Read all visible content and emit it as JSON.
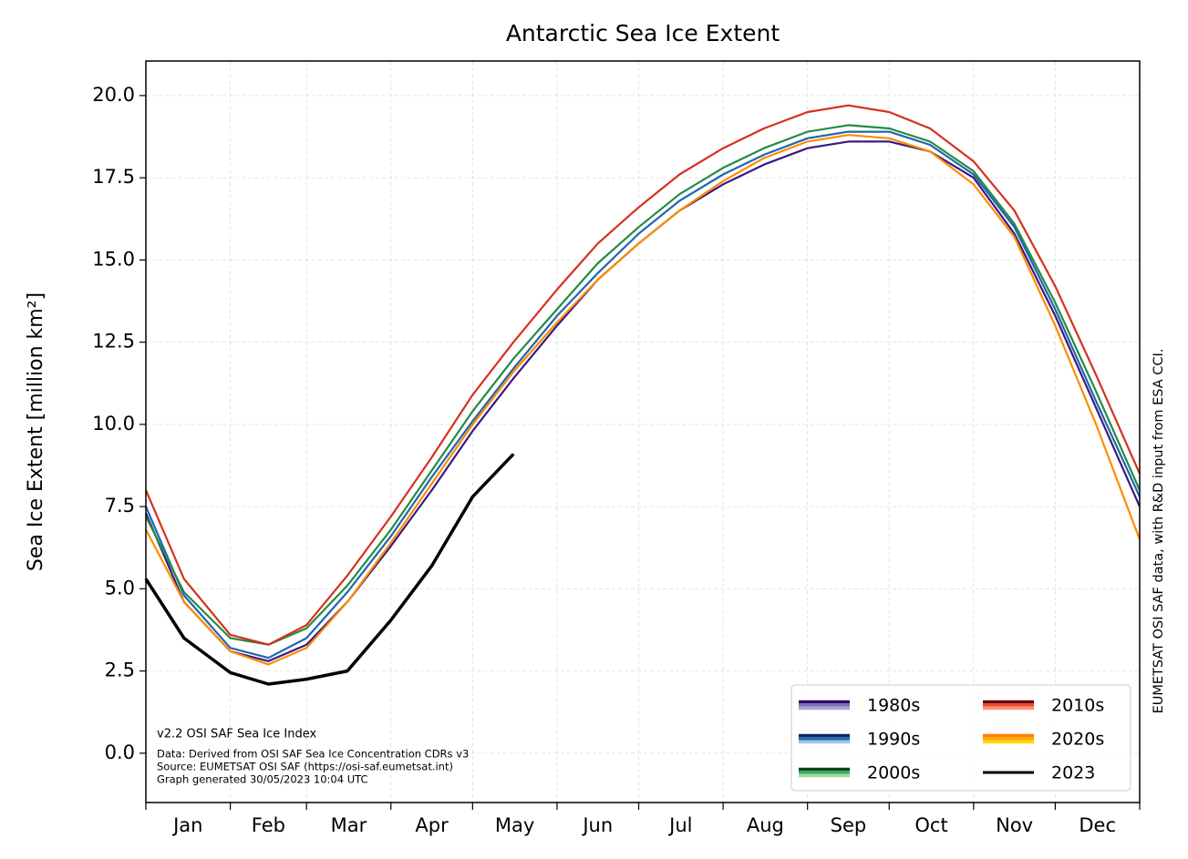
{
  "chart_data": {
    "type": "line",
    "title": "Antarctic Sea Ice Extent",
    "y_label": "Sea Ice Extent [million km²]",
    "side_note": "EUMETSAT OSI SAF data, with R&D input from ESA CCI.",
    "notes": [
      "v2.2 OSI SAF Sea Ice Index",
      "Data: Derived from OSI SAF Sea Ice Concentration CDRs v3",
      "Source: EUMETSAT OSI SAF (https://osi-saf.eumetsat.int)",
      "Graph generated 30/05/2023 10:04 UTC"
    ],
    "categories": [
      "Jan",
      "Feb",
      "Mar",
      "Apr",
      "May",
      "Jun",
      "Jul",
      "Aug",
      "Sep",
      "Oct",
      "Nov",
      "Dec"
    ],
    "xticks": [
      1,
      32,
      60,
      91,
      121,
      152,
      182,
      213,
      244,
      274,
      305,
      335,
      366
    ],
    "xlim": [
      1,
      366
    ],
    "ylim": [
      -1.5,
      21.05
    ],
    "yticks": [
      {
        "value": 0,
        "label": "0.0"
      },
      2.5,
      {
        "value": 5,
        "label": "5.0"
      },
      7.5,
      {
        "value": 10,
        "label": "10.0"
      },
      12.5,
      {
        "value": 15,
        "label": "15.0"
      },
      17.5,
      {
        "value": 20,
        "label": "20.0"
      }
    ],
    "grid": true,
    "legend_position": "lower right",
    "x": [
      1,
      15,
      32,
      46,
      60,
      75,
      91,
      106,
      121,
      136,
      152,
      167,
      182,
      197,
      213,
      228,
      244,
      259,
      274,
      289,
      305,
      320,
      335,
      350,
      366
    ],
    "series": [
      {
        "name": "1980s",
        "color": "#3b1a80",
        "shades": [
          "#2a0a6b",
          "#7b6cb3",
          "#a9a3d6"
        ],
        "values": [
          7.3,
          4.6,
          3.1,
          2.8,
          3.3,
          4.6,
          6.3,
          8.0,
          9.8,
          11.4,
          13.0,
          14.4,
          15.5,
          16.5,
          17.3,
          17.9,
          18.4,
          18.6,
          18.6,
          18.3,
          17.5,
          15.8,
          13.3,
          10.5,
          7.5
        ]
      },
      {
        "name": "1990s",
        "color": "#2166ac",
        "shades": [
          "#0b2a5e",
          "#2166ac",
          "#9ecae1"
        ],
        "values": [
          7.5,
          4.8,
          3.2,
          2.9,
          3.5,
          4.9,
          6.6,
          8.4,
          10.1,
          11.7,
          13.3,
          14.6,
          15.8,
          16.8,
          17.6,
          18.2,
          18.7,
          18.9,
          18.9,
          18.5,
          17.6,
          16.0,
          13.5,
          10.7,
          7.8
        ]
      },
      {
        "name": "2000s",
        "color": "#238b45",
        "shades": [
          "#00441b",
          "#41ab5d",
          "#a1d99b"
        ],
        "values": [
          7.2,
          4.9,
          3.5,
          3.3,
          3.8,
          5.1,
          6.8,
          8.6,
          10.4,
          12.0,
          13.5,
          14.9,
          16.0,
          17.0,
          17.8,
          18.4,
          18.9,
          19.1,
          19.0,
          18.6,
          17.7,
          16.1,
          13.7,
          11.0,
          8.0
        ]
      },
      {
        "name": "2010s",
        "color": "#d7301f",
        "shades": [
          "#67000d",
          "#e34a33",
          "#fc9272"
        ],
        "values": [
          8.0,
          5.3,
          3.6,
          3.3,
          3.9,
          5.4,
          7.2,
          9.0,
          10.9,
          12.5,
          14.1,
          15.5,
          16.6,
          17.6,
          18.4,
          19.0,
          19.5,
          19.7,
          19.5,
          19.0,
          18.0,
          16.5,
          14.2,
          11.5,
          8.5
        ]
      },
      {
        "name": "2020s",
        "color": "#ff8c00",
        "shades": [
          "#ff7f00",
          "#ffa500",
          "#ffd700"
        ],
        "values": [
          6.8,
          4.6,
          3.1,
          2.7,
          3.2,
          4.6,
          6.4,
          8.2,
          10.0,
          11.6,
          13.1,
          14.4,
          15.5,
          16.5,
          17.4,
          18.1,
          18.6,
          18.8,
          18.7,
          18.3,
          17.3,
          15.7,
          13.0,
          10.0,
          6.5
        ]
      },
      {
        "name": "2023",
        "color": "#000000",
        "shades": [
          "#000000"
        ],
        "values": [
          5.3,
          3.5,
          2.45,
          2.1,
          2.25,
          2.5,
          4.05,
          5.7,
          7.8,
          9.1,
          null,
          null,
          null,
          null,
          null,
          null,
          null,
          null,
          null,
          null,
          null,
          null,
          null,
          null,
          null
        ]
      }
    ]
  }
}
